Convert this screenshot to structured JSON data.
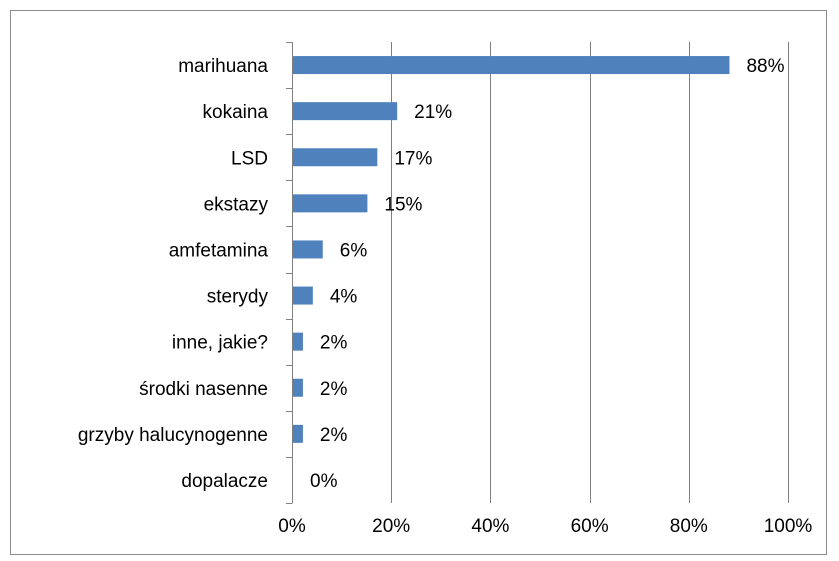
{
  "chart_data": {
    "type": "bar",
    "orientation": "horizontal",
    "categories": [
      "marihuana",
      "kokaina",
      "LSD",
      "ekstazy",
      "amfetamina",
      "sterydy",
      "inne, jakie?",
      "środki nasenne",
      "grzyby halucynogenne",
      "dopalacze"
    ],
    "values": [
      88,
      21,
      17,
      15,
      6,
      4,
      2,
      2,
      2,
      0
    ],
    "value_labels": [
      "88%",
      "21%",
      "17%",
      "15%",
      "6%",
      "4%",
      "2%",
      "2%",
      "2%",
      "0%"
    ],
    "x_ticks": [
      0,
      20,
      40,
      60,
      80,
      100
    ],
    "x_tick_labels": [
      "0%",
      "20%",
      "40%",
      "60%",
      "80%",
      "100%"
    ],
    "xlim": [
      0,
      100
    ],
    "grid": "vertical major gridlines",
    "legend": "none",
    "bar_color": "#4f81bd",
    "title": "",
    "xlabel": "",
    "ylabel": ""
  }
}
